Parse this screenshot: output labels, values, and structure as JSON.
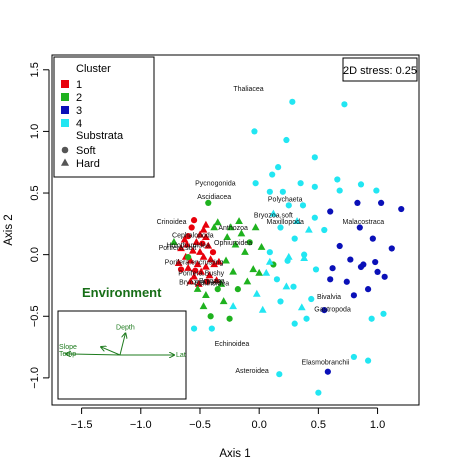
{
  "chart_data": {
    "type": "scatter",
    "xlabel": "Axis 1",
    "ylabel": "Axis 2",
    "xlim": [
      -1.75,
      1.35
    ],
    "ylim": [
      -1.22,
      1.62
    ],
    "x_ticks": [
      -1.5,
      -1.0,
      -0.5,
      0.0,
      0.5,
      1.0
    ],
    "x_tick_labels": [
      "−1.5",
      "−1.0",
      "−0.5",
      "0.0",
      "0.5",
      "1.0"
    ],
    "y_ticks": [
      -1.0,
      -0.5,
      0.0,
      0.5,
      1.0,
      1.5
    ],
    "y_tick_labels": [
      "−1.0",
      "−0.5",
      "0.0",
      "0.5",
      "1.0",
      "1.5"
    ],
    "grid": false,
    "stress_label": "2D stress: 0.25",
    "legend": {
      "position": "top-left",
      "cluster_title": "Cluster",
      "clusters": [
        {
          "label": "1",
          "color": "#e8000b"
        },
        {
          "label": "2",
          "color": "#1fb21f"
        },
        {
          "label": "3",
          "color": "#0a10b8"
        },
        {
          "label": "4",
          "color": "#22e6f2"
        }
      ],
      "substrata_title": "Substrata",
      "substrata": [
        {
          "label": "Soft",
          "shape": "circle"
        },
        {
          "label": "Hard",
          "shape": "triangle"
        }
      ]
    },
    "series": [
      {
        "cluster": "1",
        "points": [
          [
            -0.55,
            0.28,
            "c"
          ],
          [
            -0.47,
            0.2,
            "t"
          ],
          [
            -0.5,
            0.16,
            "t"
          ],
          [
            -0.45,
            0.14,
            "t"
          ],
          [
            -0.53,
            0.1,
            "t"
          ],
          [
            -0.43,
            0.07,
            "t"
          ],
          [
            -0.61,
            0.08,
            "t"
          ],
          [
            -0.56,
            0.03,
            "t"
          ],
          [
            -0.5,
            0.02,
            "t"
          ],
          [
            -0.62,
            -0.02,
            "t"
          ],
          [
            -0.47,
            -0.02,
            "t"
          ],
          [
            -0.58,
            -0.05,
            "t"
          ],
          [
            -0.41,
            -0.04,
            "t"
          ],
          [
            -0.52,
            -0.08,
            "t"
          ],
          [
            -0.45,
            -0.1,
            "t"
          ],
          [
            -0.6,
            -0.11,
            "t"
          ],
          [
            -0.38,
            -0.08,
            "t"
          ],
          [
            -0.49,
            -0.14,
            "t"
          ],
          [
            -0.55,
            -0.18,
            "t"
          ],
          [
            -0.42,
            -0.17,
            "t"
          ],
          [
            -0.66,
            0.05,
            "t"
          ],
          [
            -0.68,
            -0.07,
            "t"
          ],
          [
            -0.36,
            -0.21,
            "t"
          ],
          [
            -0.6,
            0.15,
            "c"
          ],
          [
            -0.48,
            0.09,
            "c"
          ],
          [
            -0.54,
            -0.13,
            "c"
          ],
          [
            -0.44,
            -0.22,
            "c"
          ],
          [
            -0.66,
            -0.12,
            "c"
          ],
          [
            -0.39,
            0.02,
            "c"
          ],
          [
            -0.57,
            0.22,
            "c"
          ],
          [
            -0.51,
            -0.24,
            "t"
          ],
          [
            -0.63,
            0.12,
            "t"
          ],
          [
            -0.45,
            0.24,
            "t"
          ],
          [
            -0.34,
            -0.06,
            "t"
          ],
          [
            -0.58,
            -0.22,
            "t"
          ]
        ]
      },
      {
        "cluster": "2",
        "points": [
          [
            -0.43,
            0.42,
            "c"
          ],
          [
            -0.6,
            -0.02,
            "c"
          ],
          [
            -0.27,
            0.14,
            "t"
          ],
          [
            -0.15,
            0.17,
            "t"
          ],
          [
            -0.2,
            0.08,
            "t"
          ],
          [
            -0.12,
            0.02,
            "t"
          ],
          [
            -0.28,
            -0.05,
            "t"
          ],
          [
            -0.22,
            -0.14,
            "t"
          ],
          [
            -0.05,
            -0.12,
            "t"
          ],
          [
            -0.32,
            -0.24,
            "t"
          ],
          [
            -0.45,
            -0.33,
            "t"
          ],
          [
            -0.3,
            -0.38,
            "t"
          ],
          [
            -0.52,
            -0.28,
            "t"
          ],
          [
            -0.72,
            0.1,
            "t"
          ],
          [
            -0.38,
            0.22,
            "t"
          ],
          [
            -0.08,
            0.1,
            "c"
          ],
          [
            -0.18,
            -0.28,
            "c"
          ],
          [
            -0.41,
            -0.5,
            "c"
          ],
          [
            -0.35,
            0.26,
            "t"
          ],
          [
            -0.24,
            0.22,
            "t"
          ],
          [
            -0.1,
            -0.22,
            "t"
          ],
          [
            0.02,
            0.06,
            "t"
          ],
          [
            0.0,
            -0.15,
            "t"
          ],
          [
            -0.35,
            -0.28,
            "c"
          ],
          [
            0.12,
            -0.08,
            "c"
          ],
          [
            -0.47,
            -0.42,
            "t"
          ],
          [
            -0.25,
            -0.52,
            "c"
          ],
          [
            -0.03,
            0.22,
            "t"
          ],
          [
            -0.17,
            0.27,
            "t"
          ]
        ]
      },
      {
        "cluster": "3",
        "points": [
          [
            0.83,
            0.42,
            "c"
          ],
          [
            1.03,
            0.42,
            "c"
          ],
          [
            1.2,
            0.37,
            "c"
          ],
          [
            0.6,
            0.35,
            "c"
          ],
          [
            0.85,
            0.22,
            "c"
          ],
          [
            0.96,
            0.13,
            "c"
          ],
          [
            1.12,
            0.05,
            "c"
          ],
          [
            0.68,
            0.07,
            "c"
          ],
          [
            0.62,
            -0.11,
            "c"
          ],
          [
            0.77,
            -0.04,
            "c"
          ],
          [
            0.88,
            -0.08,
            "c"
          ],
          [
            1.0,
            -0.14,
            "c"
          ],
          [
            0.74,
            -0.22,
            "c"
          ],
          [
            0.92,
            -0.28,
            "c"
          ],
          [
            1.06,
            -0.18,
            "c"
          ],
          [
            0.8,
            -0.33,
            "c"
          ],
          [
            0.6,
            -0.2,
            "c"
          ],
          [
            0.98,
            -0.06,
            "c"
          ],
          [
            0.58,
            -0.95,
            "c"
          ],
          [
            0.55,
            -0.45,
            "c"
          ],
          [
            0.86,
            -0.1,
            "c"
          ]
        ]
      },
      {
        "cluster": "4",
        "points": [
          [
            -0.04,
            1.0,
            "c"
          ],
          [
            0.28,
            1.24,
            "c"
          ],
          [
            0.72,
            1.22,
            "c"
          ],
          [
            0.23,
            0.93,
            "c"
          ],
          [
            0.16,
            0.71,
            "c"
          ],
          [
            0.47,
            0.79,
            "c"
          ],
          [
            0.35,
            0.58,
            "c"
          ],
          [
            0.66,
            0.61,
            "c"
          ],
          [
            0.47,
            0.55,
            "c"
          ],
          [
            0.11,
            0.65,
            "c"
          ],
          [
            -0.03,
            0.58,
            "c"
          ],
          [
            0.09,
            0.51,
            "c"
          ],
          [
            0.2,
            0.51,
            "c"
          ],
          [
            0.68,
            0.52,
            "c"
          ],
          [
            0.86,
            0.57,
            "c"
          ],
          [
            0.99,
            0.52,
            "c"
          ],
          [
            0.25,
            0.4,
            "c"
          ],
          [
            0.47,
            0.3,
            "c"
          ],
          [
            0.37,
            0.4,
            "c"
          ],
          [
            0.55,
            0.2,
            "c"
          ],
          [
            0.3,
            0.13,
            "c"
          ],
          [
            0.18,
            0.22,
            "c"
          ],
          [
            0.09,
            0.02,
            "c"
          ],
          [
            0.38,
            0.0,
            "c"
          ],
          [
            0.24,
            -0.05,
            "c"
          ],
          [
            0.48,
            -0.12,
            "c"
          ],
          [
            0.15,
            -0.2,
            "c"
          ],
          [
            0.29,
            -0.26,
            "c"
          ],
          [
            0.44,
            -0.36,
            "c"
          ],
          [
            0.18,
            -0.38,
            "c"
          ],
          [
            0.3,
            -0.56,
            "c"
          ],
          [
            0.4,
            -0.52,
            "c"
          ],
          [
            -0.4,
            -0.6,
            "c"
          ],
          [
            -0.55,
            -0.6,
            "c"
          ],
          [
            0.95,
            -0.52,
            "c"
          ],
          [
            0.8,
            -0.83,
            "c"
          ],
          [
            0.92,
            -0.86,
            "c"
          ],
          [
            1.05,
            -0.48,
            "c"
          ],
          [
            0.17,
            -0.97,
            "c"
          ],
          [
            0.5,
            -1.12,
            "c"
          ],
          [
            0.38,
            -0.03,
            "t"
          ],
          [
            0.23,
            -0.26,
            "t"
          ],
          [
            0.06,
            -0.15,
            "t"
          ],
          [
            0.09,
            -0.06,
            "t"
          ],
          [
            0.42,
            0.2,
            "t"
          ],
          [
            0.36,
            -0.43,
            "t"
          ],
          [
            -0.22,
            -0.42,
            "t"
          ],
          [
            0.03,
            -0.45,
            "t"
          ],
          [
            0.12,
            0.33,
            "t"
          ],
          [
            0.32,
            0.27,
            "t"
          ],
          [
            -0.02,
            -0.32,
            "t"
          ],
          [
            0.25,
            -0.02,
            "t"
          ]
        ]
      }
    ],
    "taxon_labels": [
      {
        "text": "Thaliacea",
        "x": -0.09,
        "y": 1.35
      },
      {
        "text": "Pycnogonida",
        "x": -0.37,
        "y": 0.58
      },
      {
        "text": "Ascidiacea",
        "x": -0.38,
        "y": 0.47
      },
      {
        "text": "Polychaeta",
        "x": 0.22,
        "y": 0.45
      },
      {
        "text": "Malacostraca",
        "x": 0.88,
        "y": 0.27
      },
      {
        "text": "Bryozoa.soft",
        "x": 0.12,
        "y": 0.32
      },
      {
        "text": "Maxillopoda",
        "x": 0.22,
        "y": 0.27
      },
      {
        "text": "Crinoidea",
        "x": -0.74,
        "y": 0.27
      },
      {
        "text": "Anthozoa",
        "x": -0.22,
        "y": 0.22
      },
      {
        "text": "Cephalopoda",
        "x": -0.56,
        "y": 0.16
      },
      {
        "text": "Holothuroidea",
        "x": -0.6,
        "y": 0.08
      },
      {
        "text": "Porifera.soft",
        "x": -0.69,
        "y": 0.06
      },
      {
        "text": "Ophiuroidea",
        "x": -0.22,
        "y": 0.1
      },
      {
        "text": "Porifera.encrusting",
        "x": -0.55,
        "y": -0.06
      },
      {
        "text": "Porifera.Bushy",
        "x": -0.49,
        "y": -0.15
      },
      {
        "text": "Bryozoa.hard",
        "x": -0.5,
        "y": -0.22
      },
      {
        "text": "Bryozoa",
        "x": -0.4,
        "y": -0.21
      },
      {
        "text": "Echinoidea",
        "x": -0.4,
        "y": -0.23
      },
      {
        "text": "Bivalvia",
        "x": 0.59,
        "y": -0.34
      },
      {
        "text": "Gastropoda",
        "x": 0.62,
        "y": -0.44
      },
      {
        "text": "Echinoidea",
        "x": -0.23,
        "y": -0.72
      },
      {
        "text": "Elasmobranchii",
        "x": 0.56,
        "y": -0.87
      },
      {
        "text": "Asteroidea",
        "x": -0.06,
        "y": -0.94
      }
    ],
    "environment": {
      "title": "Environment",
      "vectors": [
        {
          "label": "Depth",
          "x": 0.1,
          "y": 0.4
        },
        {
          "label": "Slope",
          "x": -0.35,
          "y": 0.15
        },
        {
          "label": "Latitude",
          "x": 1.0,
          "y": 0.0
        },
        {
          "label": "Temp",
          "x": -1.0,
          "y": 0.02
        }
      ]
    }
  }
}
